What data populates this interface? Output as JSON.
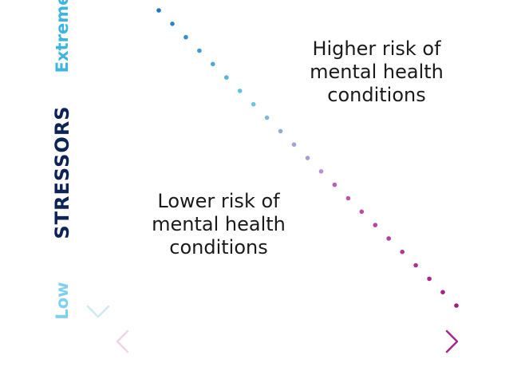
{
  "axis": {
    "vertical_top_label": "Extreme",
    "vertical_title": "STRESSORS",
    "vertical_bottom_label": "Low"
  },
  "zones": {
    "upper_right": [
      "Higher risk of",
      "mental health",
      "conditions"
    ],
    "lower_left": [
      "Lower risk of",
      "mental health",
      "conditions"
    ]
  },
  "colors": {
    "vertical_axis": "#2fa6dc",
    "horizontal_axis": "#a0288e",
    "stressors_title": "#0c2356",
    "dot_start": "#1f77c4",
    "dot_mid": "#6ac6e6",
    "dot_end": "#a41a80"
  },
  "boundary": {
    "type": "dotted-diagonal",
    "dot_count": 23
  }
}
